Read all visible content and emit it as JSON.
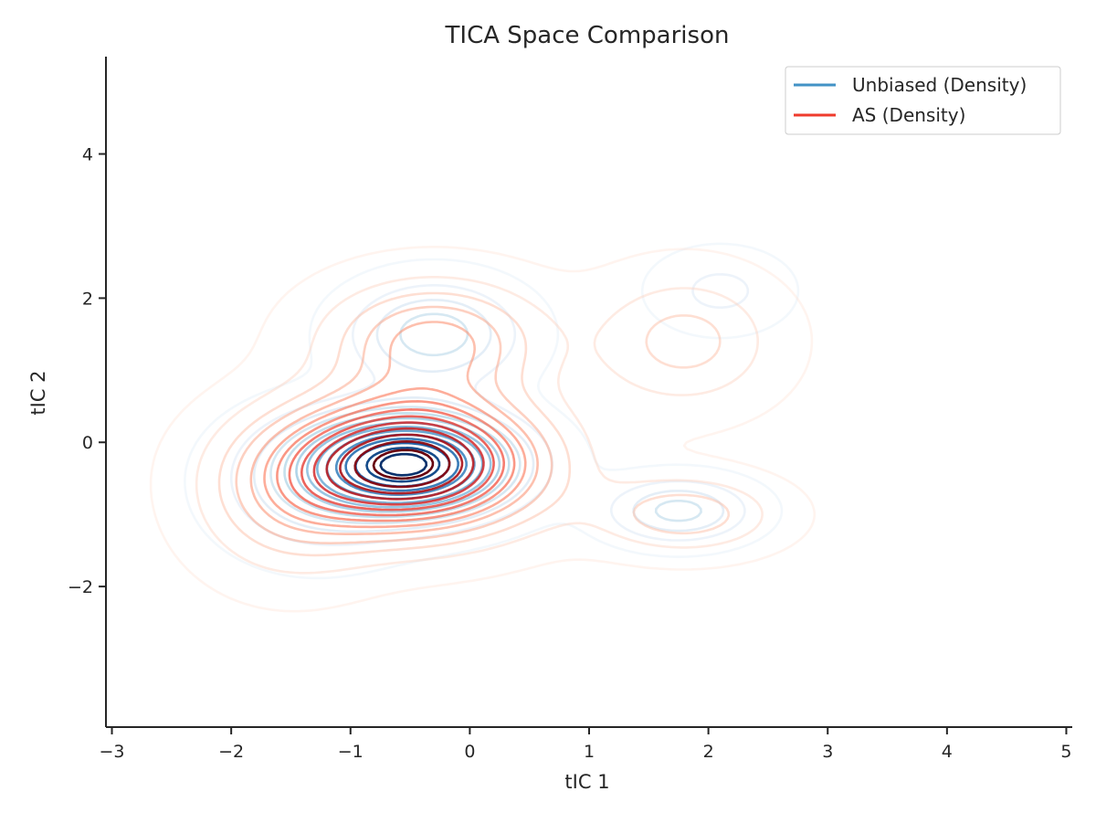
{
  "chart_data": {
    "type": "contour",
    "title": "TICA Space Comparison",
    "xlabel": "tIC 1",
    "ylabel": "tIC 2",
    "xlim": [
      -3.05,
      5.05
    ],
    "ylim": [
      -3.95,
      5.35
    ],
    "xticks": [
      -3,
      -2,
      -1,
      0,
      1,
      2,
      3,
      4,
      5
    ],
    "yticks": [
      -2,
      0,
      2,
      4
    ],
    "xtick_labels": [
      "−3",
      "−2",
      "−1",
      "0",
      "1",
      "2",
      "3",
      "4",
      "5"
    ],
    "ytick_labels": [
      "−2",
      "0",
      "2",
      "4"
    ],
    "grid": false,
    "legend_position": "top-right",
    "series": [
      {
        "name": "Unbiased (Density)",
        "color": "#4292c6",
        "colormap": "Blues",
        "components": [
          {
            "mean": [
              -0.5,
              -0.3
            ],
            "sd": [
              0.55,
              0.45
            ],
            "weight": 1.0
          },
          {
            "mean": [
              -0.3,
              1.5
            ],
            "sd": [
              0.45,
              0.45
            ],
            "weight": 0.3
          },
          {
            "mean": [
              1.75,
              -0.95
            ],
            "sd": [
              0.38,
              0.28
            ],
            "weight": 0.28
          },
          {
            "mean": [
              2.1,
              2.1
            ],
            "sd": [
              0.35,
              0.35
            ],
            "weight": 0.12
          },
          {
            "mean": [
              -1.3,
              -0.6
            ],
            "sd": [
              0.5,
              0.6
            ],
            "weight": 0.2
          }
        ]
      },
      {
        "name": "AS (Density)",
        "color": "#ef3b2c",
        "colormap": "Reds",
        "components": [
          {
            "mean": [
              -0.5,
              -0.3
            ],
            "sd": [
              0.7,
              0.6
            ],
            "weight": 1.0
          },
          {
            "mean": [
              -0.3,
              1.4
            ],
            "sd": [
              0.6,
              0.55
            ],
            "weight": 0.35
          },
          {
            "mean": [
              1.8,
              1.4
            ],
            "sd": [
              0.5,
              0.6
            ],
            "weight": 0.2
          },
          {
            "mean": [
              1.8,
              -1.0
            ],
            "sd": [
              0.5,
              0.35
            ],
            "weight": 0.22
          },
          {
            "mean": [
              -1.5,
              -0.8
            ],
            "sd": [
              0.5,
              0.7
            ],
            "weight": 0.22
          }
        ]
      }
    ]
  }
}
